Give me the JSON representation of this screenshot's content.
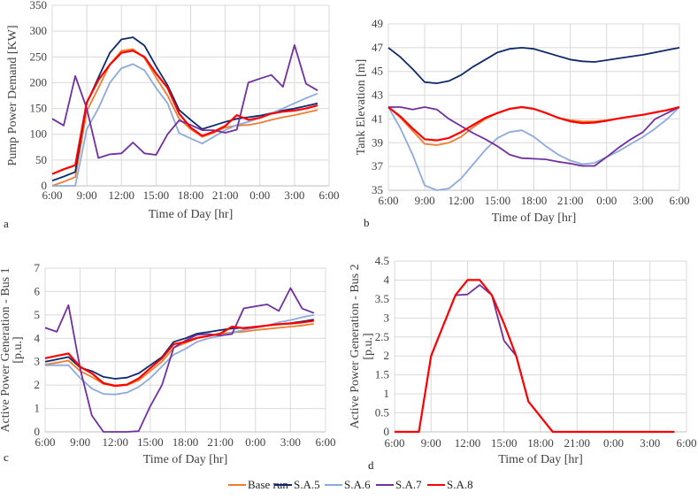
{
  "series_colors": {
    "Base run": "#ED7D31",
    "S.A.5": "#0E2A6B",
    "S.A.6": "#8EAADB",
    "S.A.7": "#7030A0",
    "S.A.8": "#FF0000"
  },
  "legend": [
    "Base run",
    "S.A.5",
    "S.A.6",
    "S.A.7",
    "S.A.8"
  ],
  "chart_data": [
    {
      "panel": "a",
      "type": "line",
      "xlabel": "Time of Day [hr]",
      "ylabel": "Pump Power Demand [KW]",
      "ylim": [
        0,
        350
      ],
      "yticks": [
        0,
        50,
        100,
        150,
        200,
        250,
        300,
        350
      ],
      "xticks": [
        "6:00",
        "9:00",
        "12:00",
        "15:00",
        "18:00",
        "21:00",
        "0:00",
        "3:00",
        "6:00"
      ],
      "x_hours": [
        6,
        7,
        8,
        9,
        10,
        11,
        12,
        13,
        14,
        15,
        16,
        17,
        18,
        19,
        20,
        21,
        22,
        23,
        24,
        25,
        26,
        27,
        28,
        29
      ],
      "grid": true,
      "series": [
        {
          "name": "Base run",
          "values": [
            0,
            8,
            17,
            145,
            190,
            235,
            262,
            265,
            248,
            210,
            175,
            130,
            110,
            95,
            103,
            113,
            117,
            118,
            122,
            128,
            133,
            137,
            142,
            147
          ]
        },
        {
          "name": "S.A.5",
          "values": [
            10,
            18,
            27,
            160,
            210,
            258,
            284,
            288,
            272,
            232,
            195,
            147,
            128,
            110,
            117,
            124,
            130,
            133,
            136,
            141,
            146,
            150,
            155,
            160
          ]
        },
        {
          "name": "S.A.6",
          "values": [
            0,
            0,
            0,
            110,
            150,
            200,
            228,
            236,
            224,
            190,
            160,
            102,
            92,
            82,
            95,
            108,
            118,
            124,
            132,
            141,
            150,
            160,
            170,
            179
          ]
        },
        {
          "name": "S.A.7",
          "values": [
            130,
            117,
            213,
            150,
            54,
            61,
            63,
            84,
            63,
            60,
            100,
            127,
            118,
            108,
            108,
            103,
            109,
            200,
            208,
            215,
            192,
            273,
            198,
            185
          ]
        },
        {
          "name": "S.A.8",
          "values": [
            23,
            32,
            40,
            162,
            205,
            235,
            258,
            262,
            250,
            218,
            190,
            140,
            113,
            97,
            105,
            116,
            137,
            128,
            132,
            140,
            144,
            146,
            150,
            156
          ]
        }
      ]
    },
    {
      "panel": "b",
      "type": "line",
      "xlabel": "Time of Day [hr]",
      "ylabel": "Tank Elevation [m]",
      "ylim": [
        35,
        49
      ],
      "yticks": [
        35,
        37,
        39,
        41,
        43,
        45,
        47,
        49
      ],
      "xticks": [
        "6:00",
        "9:00",
        "12:00",
        "15:00",
        "18:00",
        "21:00",
        "0:00",
        "3:00",
        "6:00"
      ],
      "x_hours": [
        6,
        7,
        8,
        9,
        10,
        11,
        12,
        13,
        14,
        15,
        16,
        17,
        18,
        19,
        20,
        21,
        22,
        23,
        24,
        25,
        26,
        27,
        28,
        29,
        30
      ],
      "grid": true,
      "series": [
        {
          "name": "Base run",
          "values": [
            42,
            41.1,
            40.0,
            38.9,
            38.8,
            39.0,
            39.5,
            40.3,
            41.0,
            41.5,
            41.85,
            42.0,
            41.85,
            41.5,
            41.1,
            40.9,
            40.8,
            40.8,
            40.9,
            41.05,
            41.2,
            41.35,
            41.55,
            41.75,
            42
          ]
        },
        {
          "name": "S.A.5",
          "values": [
            47,
            46.2,
            45.2,
            44.1,
            44.0,
            44.2,
            44.7,
            45.4,
            46.0,
            46.6,
            46.9,
            47.0,
            46.9,
            46.6,
            46.3,
            46.0,
            45.85,
            45.8,
            45.95,
            46.1,
            46.25,
            46.4,
            46.6,
            46.8,
            47.0
          ]
        },
        {
          "name": "S.A.6",
          "values": [
            42,
            40.2,
            38.0,
            35.4,
            35.0,
            35.15,
            36.0,
            37.2,
            38.4,
            39.4,
            39.9,
            40.05,
            39.5,
            38.7,
            38.0,
            37.5,
            37.2,
            37.3,
            37.8,
            38.3,
            38.9,
            39.5,
            40.2,
            41.0,
            42
          ]
        },
        {
          "name": "S.A.7",
          "values": [
            42,
            42,
            41.8,
            42,
            41.8,
            41,
            40.4,
            39.8,
            39.3,
            38.7,
            38.0,
            37.7,
            37.65,
            37.6,
            37.4,
            37.25,
            37.05,
            37.05,
            37.8,
            38.6,
            39.3,
            39.9,
            41.0,
            41.5,
            42
          ]
        },
        {
          "name": "S.A.8",
          "values": [
            42,
            41.2,
            40.2,
            39.3,
            39.2,
            39.4,
            39.9,
            40.5,
            41.1,
            41.5,
            41.85,
            42.0,
            41.85,
            41.5,
            41.1,
            40.8,
            40.65,
            40.7,
            40.85,
            41.05,
            41.2,
            41.35,
            41.55,
            41.75,
            42
          ]
        }
      ]
    },
    {
      "panel": "c",
      "type": "line",
      "xlabel": "Time of Day [hr]",
      "ylabel": "Active Power Generation - Bus 1",
      "ylabel2": "[p.u.]",
      "ylim": [
        0,
        7
      ],
      "yticks": [
        0,
        1,
        2,
        3,
        4,
        5,
        6,
        7
      ],
      "xticks": [
        "6:00",
        "9:00",
        "12:00",
        "15:00",
        "18:00",
        "21:00",
        "0:00",
        "3:00",
        "6:00"
      ],
      "x_hours": [
        6,
        7,
        8,
        9,
        10,
        11,
        12,
        13,
        14,
        15,
        16,
        17,
        18,
        19,
        20,
        21,
        22,
        23,
        24,
        25,
        26,
        27,
        28,
        29
      ],
      "grid": true,
      "series": [
        {
          "name": "Base run",
          "values": [
            2.88,
            2.95,
            3.05,
            2.6,
            2.35,
            2.05,
            1.95,
            2.0,
            2.2,
            2.6,
            3.0,
            3.6,
            3.8,
            4.0,
            4.1,
            4.2,
            4.25,
            4.28,
            4.35,
            4.4,
            4.45,
            4.5,
            4.55,
            4.62
          ]
        },
        {
          "name": "S.A.5",
          "values": [
            3.0,
            3.1,
            3.2,
            2.75,
            2.6,
            2.35,
            2.27,
            2.32,
            2.5,
            2.85,
            3.2,
            3.85,
            4.0,
            4.2,
            4.27,
            4.35,
            4.42,
            4.45,
            4.5,
            4.55,
            4.6,
            4.65,
            4.72,
            4.8
          ]
        },
        {
          "name": "S.A.6",
          "values": [
            2.85,
            2.85,
            2.85,
            2.3,
            1.85,
            1.62,
            1.6,
            1.68,
            1.92,
            2.3,
            2.8,
            3.3,
            3.55,
            3.85,
            4.0,
            4.1,
            4.25,
            4.35,
            4.45,
            4.55,
            4.68,
            4.78,
            4.9,
            5.0
          ]
        },
        {
          "name": "S.A.7",
          "values": [
            4.45,
            4.28,
            5.42,
            2.7,
            0.7,
            0,
            0,
            0,
            0.03,
            1.1,
            2.0,
            3.6,
            3.9,
            4.15,
            4.18,
            4.12,
            4.18,
            5.28,
            5.37,
            5.45,
            5.17,
            6.15,
            5.27,
            5.08
          ]
        },
        {
          "name": "S.A.8",
          "values": [
            3.15,
            3.25,
            3.35,
            2.78,
            2.5,
            2.08,
            1.97,
            2.02,
            2.28,
            2.72,
            3.15,
            3.75,
            3.85,
            4.02,
            4.1,
            4.2,
            4.5,
            4.43,
            4.48,
            4.55,
            4.6,
            4.63,
            4.68,
            4.75
          ]
        }
      ]
    },
    {
      "panel": "d",
      "type": "line",
      "xlabel": "Time of Day [hr]",
      "ylabel": "Active Power Generation - Bus 2",
      "ylabel2": "[p.u.]",
      "ylim": [
        0,
        4.5
      ],
      "yticks": [
        "0",
        "0.5",
        "1",
        "1.5",
        "2",
        "2.5",
        "3",
        "3.5",
        "4",
        "4.5"
      ],
      "xticks": [
        "6:00",
        "9:00",
        "12:00",
        "15:00",
        "18:00",
        "21:00",
        "0:00",
        "3:00",
        "6:00"
      ],
      "x_hours": [
        6,
        7,
        8,
        9,
        10,
        11,
        12,
        13,
        14,
        15,
        16,
        17,
        18,
        19,
        20,
        21,
        22,
        23,
        24,
        25,
        26,
        27,
        28,
        29
      ],
      "grid": true,
      "series": [
        {
          "name": "S.A.7",
          "values": [
            0,
            0,
            0,
            2,
            2.8,
            3.6,
            3.62,
            3.87,
            3.6,
            2.4,
            2.0,
            0.8,
            0.4,
            0,
            0,
            0,
            0,
            0,
            0,
            0,
            0,
            0,
            0,
            0
          ]
        },
        {
          "name": "S.A.8",
          "values": [
            0,
            0,
            0,
            2,
            2.8,
            3.6,
            4,
            4,
            3.6,
            2.85,
            2.0,
            0.8,
            0.4,
            0,
            0,
            0,
            0,
            0,
            0,
            0,
            0,
            0,
            0,
            0
          ]
        }
      ]
    }
  ]
}
